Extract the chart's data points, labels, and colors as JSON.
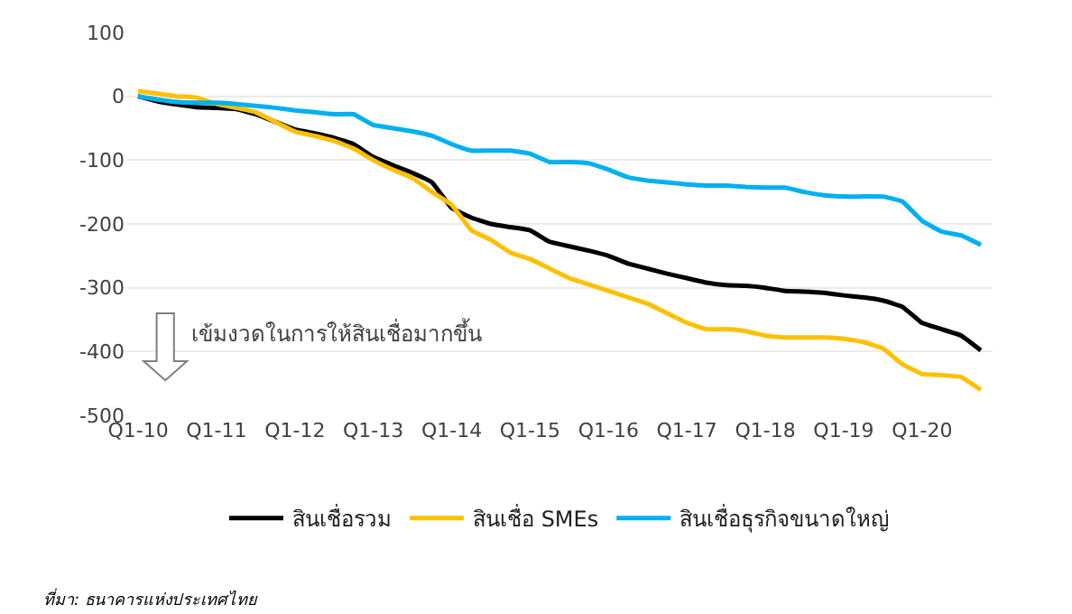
{
  "chart_data": {
    "type": "line",
    "categories": [
      "Q1-10",
      null,
      null,
      null,
      "Q1-11",
      null,
      null,
      null,
      "Q1-12",
      null,
      null,
      null,
      "Q1-13",
      null,
      null,
      null,
      "Q1-14",
      null,
      null,
      null,
      "Q1-15",
      null,
      null,
      null,
      "Q1-16",
      null,
      null,
      null,
      "Q1-17",
      null,
      null,
      null,
      "Q1-18",
      null,
      null,
      null,
      "Q1-19",
      null,
      null,
      null,
      "Q1-20",
      null,
      null,
      null
    ],
    "series": [
      {
        "name": "สินเชื่อรวม",
        "color": "#000000",
        "values": [
          0,
          -8,
          -13,
          -17,
          -18,
          -20,
          -28,
          -40,
          -52,
          -58,
          -65,
          -75,
          -95,
          -108,
          -120,
          -135,
          -175,
          -190,
          -200,
          -205,
          -210,
          -228,
          -235,
          -242,
          -250,
          -262,
          -270,
          -278,
          -285,
          -292,
          -296,
          -297,
          -300,
          -305,
          -306,
          -308,
          -312,
          -315,
          -320,
          -330,
          -355,
          -365,
          -375,
          -398
        ]
      },
      {
        "name": "สินเชื่อ SMEs",
        "color": "#ffc000",
        "values": [
          8,
          4,
          0,
          -2,
          -12,
          -18,
          -25,
          -40,
          -55,
          -62,
          -70,
          -82,
          -100,
          -115,
          -128,
          -150,
          -170,
          -210,
          -225,
          -245,
          -255,
          -270,
          -285,
          -295,
          -305,
          -315,
          -325,
          -340,
          -355,
          -365,
          -365,
          -368,
          -375,
          -378,
          -378,
          -378,
          -380,
          -385,
          -395,
          -420,
          -435,
          -437,
          -440,
          -460
        ]
      },
      {
        "name": "สินเชื่อธุรกิจขนาดใหญ่",
        "color": "#00b0f0",
        "values": [
          0,
          -5,
          -9,
          -10,
          -10,
          -12,
          -15,
          -18,
          -22,
          -25,
          -28,
          -28,
          -45,
          -50,
          -55,
          -62,
          -75,
          -85,
          -85,
          -85,
          -90,
          -103,
          -103,
          -105,
          -115,
          -127,
          -132,
          -135,
          -138,
          -140,
          -140,
          -142,
          -143,
          -143,
          -150,
          -155,
          -157,
          -157,
          -157,
          -165,
          -195,
          -212,
          -218,
          -233
        ]
      }
    ],
    "ylim": [
      -500,
      100
    ],
    "yticks": [
      -500,
      -400,
      -300,
      -200,
      -100,
      0,
      100
    ],
    "grid": "y",
    "legend": "bottom",
    "marker": "none",
    "line_style": "solid",
    "annotations": [
      "เข้มงวดในการให้สินเชื่อมากขึ้น",
      "ที่มา: ธนาคารแห่งประเทศไทย"
    ]
  }
}
